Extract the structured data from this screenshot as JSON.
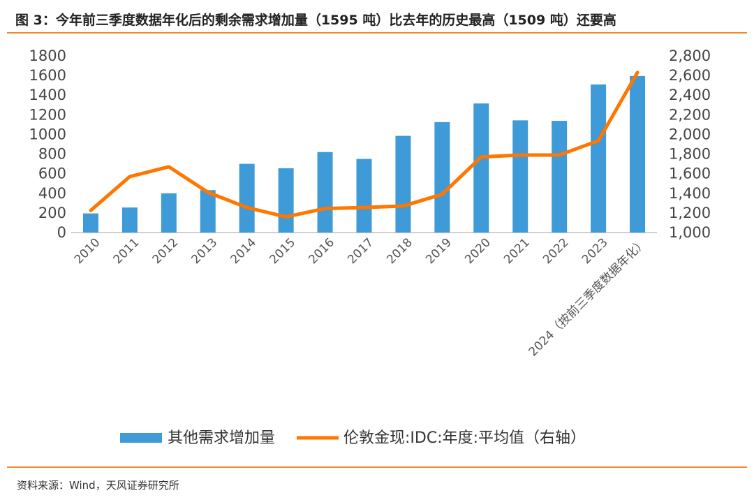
{
  "title": "图 3：今年前三季度数据年化后的剩余需求增加量（1595 吨）比去年的历史最高（1509 吨）还要高",
  "source": "资料来源：Wind，天风证券研究所",
  "chart_data": {
    "type": "bar+line",
    "categories": [
      "2010",
      "2011",
      "2012",
      "2013",
      "2014",
      "2015",
      "2016",
      "2017",
      "2018",
      "2019",
      "2020",
      "2021",
      "2022",
      "2023",
      "2024（按前三季度数据年化）"
    ],
    "series": [
      {
        "name": "其他需求增加量",
        "type": "bar",
        "axis": "left",
        "color": "#3f9ad8",
        "values": [
          195,
          255,
          400,
          432,
          700,
          655,
          820,
          750,
          985,
          1125,
          1315,
          1143,
          1138,
          1509,
          1595
        ]
      },
      {
        "name": "伦敦金现:IDC:年度:平均值（右轴）",
        "type": "line",
        "axis": "right",
        "color": "#ff7600",
        "values": [
          1225,
          1570,
          1670,
          1410,
          1255,
          1160,
          1245,
          1255,
          1270,
          1390,
          1770,
          1790,
          1790,
          1935,
          2630
        ]
      }
    ],
    "yleft": {
      "lim": [
        0,
        1800
      ],
      "ticks": [
        "0",
        "200",
        "400",
        "600",
        "800",
        "1000",
        "1200",
        "1400",
        "1600",
        "1800"
      ]
    },
    "yright": {
      "lim": [
        1000,
        2800
      ],
      "ticks": [
        "1,000",
        "1,200",
        "1,400",
        "1,600",
        "1,800",
        "2,000",
        "2,200",
        "2,400",
        "2,600",
        "2,800"
      ]
    },
    "legend": "bottom"
  }
}
